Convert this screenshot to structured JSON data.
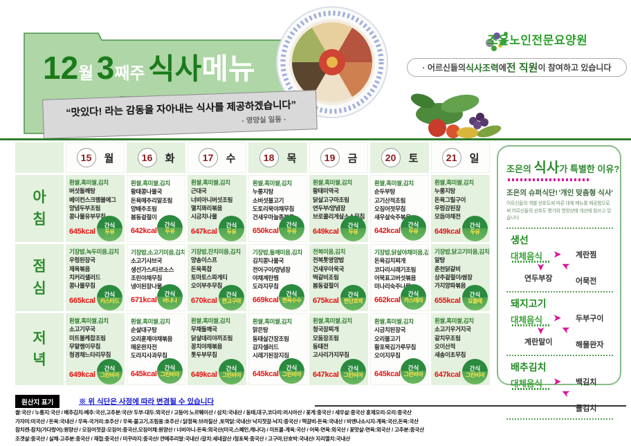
{
  "brand": {
    "org_name": "조은노인전문요양원",
    "tagline_prefix": "· 어르신들의 ",
    "tagline_bold1": "식사조력",
    "tagline_mid": "에 ",
    "tagline_bold2": "전 직원",
    "tagline_suffix": "이 참여하고 있습니다"
  },
  "header": {
    "month": "12",
    "month_unit": "월",
    "week": "3",
    "week_unit": "째주",
    "title_green": "식사",
    "title_white": "메뉴",
    "quote": "“맛있다! 라는 감동을 자아내는 식사를 제공하겠습니다”",
    "quote_by": "- 영양실 일동 -"
  },
  "table": {
    "days": [
      {
        "date": "15",
        "dow": "월"
      },
      {
        "date": "16",
        "dow": "화"
      },
      {
        "date": "17",
        "dow": "수"
      },
      {
        "date": "18",
        "dow": "목"
      },
      {
        "date": "19",
        "dow": "금"
      },
      {
        "date": "20",
        "dow": "토"
      },
      {
        "date": "21",
        "dow": "일"
      }
    ],
    "snack_label": "간식",
    "rows": [
      {
        "label": "아침",
        "cells": [
          {
            "first": "흰쌀,흑미쌀,김치",
            "items": [
              "버섯들깨탕",
              "베이컨스크램블에그",
              "양념두부조림",
              "콩나물유부무침"
            ],
            "kcal": "645kcal",
            "snack": "두유"
          },
          {
            "first": "흰쌀,흑미쌀,김치",
            "items": [
              "황태콩나물국",
              "돈육메추리알조림",
              "양배추조림",
              "봄동겉절이"
            ],
            "kcal": "642kcal",
            "snack": "두유"
          },
          {
            "first": "흰쌀,흑미쌀,김치",
            "items": [
              "근대국",
              "너비아니버섯조림",
              "멸치꽈리볶음",
              "시금치나물"
            ],
            "kcal": "647kcal",
            "snack": "두유"
          },
          {
            "first": "흰쌀,흑미쌀,김치",
            "items": [
              "누룽지탕",
              "소버섯불고기",
              "도토리묵야채무침",
              "건새우마늘종볶음"
            ],
            "kcal": "650kcal",
            "snack": "두유"
          },
          {
            "first": "흰쌀,흑미쌀,김치",
            "items": [
              "황태미역국",
              "닭살고구마조림",
              "연두부/양념장",
              "브로콜리게살소스무침"
            ],
            "kcal": "649kcal",
            "snack": "두유"
          },
          {
            "first": "흰쌀,흑미쌀,김치",
            "items": [
              "순두부탕",
              "고기산적조림",
              "오징어젓무침",
              "새우살숙주볶음"
            ],
            "kcal": "642kcal",
            "snack": "두유"
          },
          {
            "first": "흰쌀,흑미쌀,김치",
            "items": [
              "누룽지탕",
              "돈육그릴구이",
              "우렁강된장",
              "모듬야채전"
            ],
            "kcal": "649kcal",
            "snack": "두유"
          }
        ]
      },
      {
        "label": "점심",
        "cells": [
          {
            "first": "기장밥,녹두미음,김치",
            "items": [
              "우렁된장국",
              "제육볶음",
              "치커리샐러드",
              "콩나물무침"
            ],
            "kcal": "665kcal",
            "snack": "카스타드"
          },
          {
            "first": "기장밥,소고기미음,김치",
            "items": [
              "소고기샤브국",
              "생선가스/타르소스",
              "조린야채무침",
              "냉이된장나물"
            ],
            "kcal": "671kcal",
            "snack": "바나나"
          },
          {
            "first": "기장밥,잔치미음,김치",
            "items": [
              "양송이스프",
              "돈육폭찹",
              "토마토스파게티",
              "오이부추무침"
            ],
            "kcal": "670kcal",
            "snack": "찐고구마"
          },
          {
            "first": "기장밥,들깨미음,김치",
            "items": [
              "김치콩나물국",
              "전어구이/양념장",
              "야채계란찜",
              "도라지무침"
            ],
            "kcal": "669kcal",
            "snack": "찐옥수수"
          },
          {
            "first": "전복미음,김치",
            "items": [
              "전복톳영양밥",
              "건새우아욱국",
              "떡갈비조림",
              "봄동겉절이"
            ],
            "kcal": "675kcal",
            "snack": "찐단호박"
          },
          {
            "first": "기장밥,닭살야채미음,김치",
            "items": [
              "돈육김치찌개",
              "코다리시래기조림",
              "어묵표고버섯볶음",
              "미나리숙주나물"
            ],
            "kcal": "662kcal",
            "snack": "카스테라"
          },
          {
            "first": "기장밥,닭고기미음,김치",
            "items": [
              "알탕",
              "춘천닭갈비",
              "상추겉절이/쌈장",
              "가지양파볶음"
            ],
            "kcal": "655kcal",
            "snack": "요플레"
          }
        ]
      },
      {
        "label": "저녁",
        "cells": [
          {
            "first": "흰쌀,흑미쌀,김치",
            "items": [
              "소고기무국",
              "미트볼케찹조림",
              "무말랭이무침",
              "청경채느타리무침"
            ],
            "kcal": "649kcal",
            "snack": "그린비아"
          },
          {
            "first": "흰쌀,흑미쌀,김치",
            "items": [
              "순살대구탕",
              "오리훈제야채볶음",
              "매운완자전",
              "도라지사과무침"
            ],
            "kcal": "645kcal",
            "snack": "그린비아"
          },
          {
            "first": "흰쌀,흑미쌀,김치",
            "items": [
              "무채들깨국",
              "닭살데리야끼조림",
              "꽁치야채볶음",
              "톳두부무침"
            ],
            "kcal": "649kcal",
            "snack": "그린비아"
          },
          {
            "first": "흰쌀,흑미쌀,김치",
            "items": [
              "맑은탕",
              "동태살간장조림",
              "감자샐러드",
              "시래기된장지짐"
            ],
            "kcal": "645kcal",
            "snack": "그린비아"
          },
          {
            "first": "흰쌀,흑미쌀,김치",
            "items": [
              "청국장찌개",
              "모둠장조림",
              "동태전",
              "고사리가지무침"
            ],
            "kcal": "647kcal",
            "snack": "그린비아"
          },
          {
            "first": "흰쌀,흑미쌀,김치",
            "items": [
              "시금치된장국",
              "오리불고기",
              "황포묵김가루무침",
              "오이지무침"
            ],
            "kcal": "645kcal",
            "snack": "그린비아"
          },
          {
            "first": "흰쌀,흑미쌀,김치",
            "items": [
              "소고기우거지국",
              "갈치무조림",
              "오이산적",
              "새송이초무침"
            ],
            "kcal": "647kcal",
            "snack": "그린비아"
          }
        ]
      }
    ]
  },
  "sidebar": {
    "title_pre": "조은의 ",
    "title_big": "식사",
    "title_post": "가 특별한 이유?",
    "subtitle_left": "조은의 슈퍼식단!",
    "subtitle_right": "'개인 맞춤형 식사'",
    "desc": "어르신들의 개별 선호도에 따른 대체 메뉴를 제공함으로써 어르신들의 선호도 평가와 영양상태 개선에 힘쓰고 있습니다",
    "alt_label": "대체음식",
    "sections": [
      {
        "name": "생선",
        "items": [
          "계란찜",
          "연두부장",
          "어묵전"
        ]
      },
      {
        "name": "돼지고기",
        "items": [
          "두부구이",
          "계란말이",
          "해물완자"
        ]
      },
      {
        "name": "배추김치",
        "items": [
          "백김치",
          "",
          "물김치"
        ]
      }
    ]
  },
  "footer": {
    "origin_label": "원산지 표기",
    "notice": "※ 위 식단은 사정에 따라 변경될 수 있습니다",
    "origin_lines": [
      "쌀:국산 / 누룽지:국산 / 배추김치-배추:국산,고추분:국산/ 두부-대두:외국산 / 고등어:노르웨이산 / 삼치:국내산 / 동태,대구,코다리:러시아산 / 꽃게:중국산 / 새우살:중국산 훈제오리-오리:중국산",
      "가자미:미국산 / 돈육:국내산 / 우육-국거리:호주산 / 우육-불고기,조림용:호주산 / 닭정육:브라질산 ,토막닭:국내산/ 낙지젓갈-낙지:중국산 / 떡갈비-돈육:국내산 / 비엔나소시지-계육:국산,돈육:국산",
      "참치캔-참치(가다랑어):원양산 / 오징어젓갈-오징어:중국산,오징어채:원양산 / 너비아니-돈육:외국산(미국,스페인,캐나다) / 미트볼-계육:국산 / 어묵-연육:외국산 / 꽃맛살-연육:외국산 / 고추분:중국산",
      "조갯살:중국산 / 실채-고추분:중국산 / 재첩:중국산 / 미꾸라지:중국산/ 깐메추리알:국내산 /갈치:세네갈산 /청포묵:중국산 / 고구마,단호박:국내산/ 지리멸치:국내산"
    ]
  },
  "colors": {
    "accent_green": "#2e8b2e",
    "pale_green": "#e4f1de",
    "banner_green": "#aed6a6",
    "kcal_red": "#e31212",
    "badge_green": "#2a8a3e",
    "badge_snack_yellow": "#ffe84d",
    "magenta_arrow": "#d6189a",
    "notice_blue": "#1414d6"
  }
}
